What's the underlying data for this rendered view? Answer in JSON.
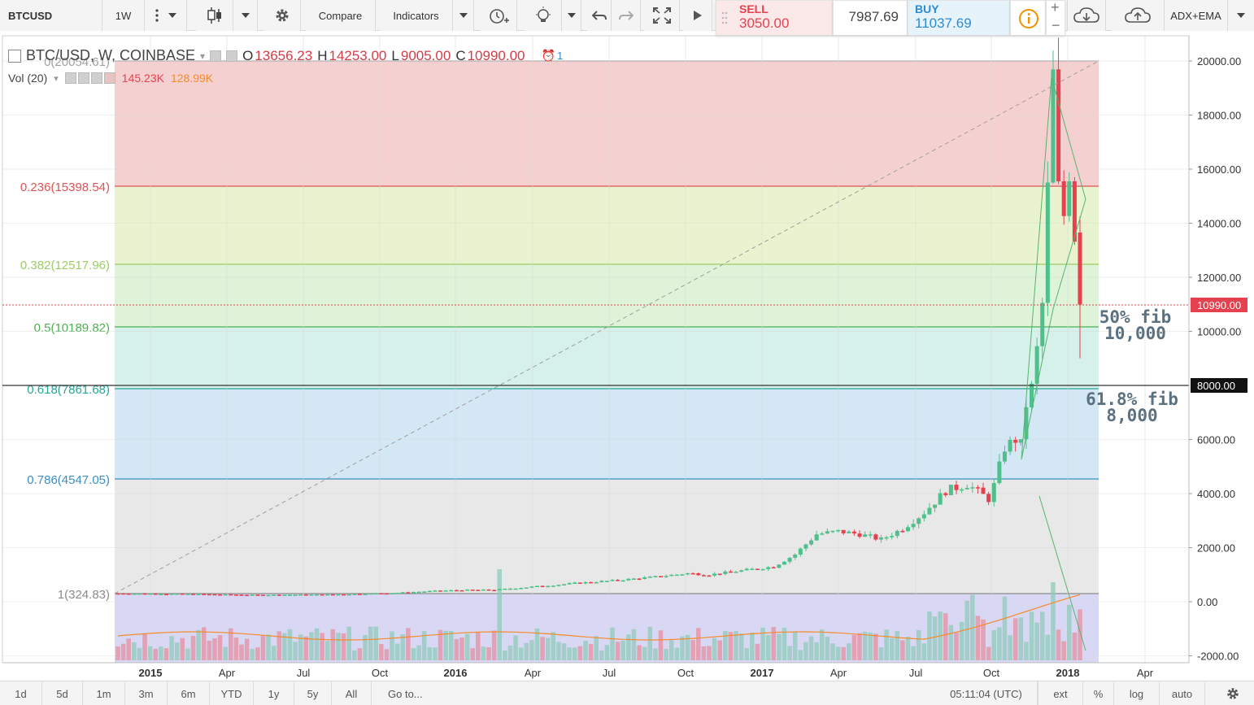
{
  "toolbar": {
    "symbol": "BTCUSD",
    "interval": "1W",
    "compare": "Compare",
    "indicators": "Indicators",
    "sell_label": "SELL",
    "sell_price": "3050.00",
    "spread": "7987.69",
    "buy_label": "BUY",
    "buy_price": "11037.69",
    "layout": "ADX+EMA",
    "zoom_in": "+",
    "zoom_out": "−"
  },
  "legend": {
    "symbol_line": "BTC/USD, W, COINBASE",
    "o_label": "O",
    "o_value": "13656.23",
    "h_label": "H",
    "h_value": "14253.00",
    "l_label": "L",
    "l_value": "9005.00",
    "c_label": "C",
    "c_value": "10990.00",
    "alert_count": "1",
    "vol_label": "Vol (20)",
    "vol_value": "145.23K",
    "vol_ma_value": "128.99K"
  },
  "price_axis": {
    "labels": [
      "20000.00",
      "18000.00",
      "16000.00",
      "14000.00",
      "12000.00",
      "10000.00",
      "6000.00",
      "4000.00",
      "2000.00",
      "0.00",
      "-2000.00"
    ],
    "last_price_tag": "10990.00",
    "level_tag": "8000.00"
  },
  "time_axis": {
    "labels": [
      "2015",
      "Apr",
      "Jul",
      "Oct",
      "2016",
      "Apr",
      "Jul",
      "Oct",
      "2017",
      "Apr",
      "Jul",
      "Oct",
      "2018",
      "Apr"
    ]
  },
  "fib_levels": [
    {
      "label": "0(20054.61)",
      "color": "#9e9e9e"
    },
    {
      "label": "0.236(15398.54)",
      "color": "#e05353"
    },
    {
      "label": "0.382(12517.96)",
      "color": "#9ccc65"
    },
    {
      "label": "0.5(10189.82)",
      "color": "#4caf50"
    },
    {
      "label": "0.618(7861.68)",
      "color": "#26a69a"
    },
    {
      "label": "0.786(4547.05)",
      "color": "#3a8ec4"
    },
    {
      "label": "1(324.83)",
      "color": "#8a8a8a"
    }
  ],
  "annotations": [
    {
      "line1": "50% fib",
      "line2": "10,000"
    },
    {
      "line1": "61.8% fib",
      "line2": "8,000"
    }
  ],
  "bottom": {
    "ranges": [
      "1d",
      "5d",
      "1m",
      "3m",
      "6m",
      "YTD",
      "1y",
      "5y",
      "All"
    ],
    "goto": "Go to...",
    "clock": "05:11:04 (UTC)",
    "ext": "ext",
    "pct": "%",
    "log": "log",
    "auto": "auto"
  },
  "colors": {
    "up": "#4fc08b",
    "down": "#e5414e",
    "fib_zone_0": "#f5d0d0",
    "fib_zone_1": "#e9f3cf",
    "fib_zone_2": "#dff3d9",
    "fib_zone_3": "#d5f1e9",
    "fib_zone_4": "#d3e7f4",
    "fib_zone_5": "#e8e8e8",
    "fib_zone_6": "#d9d8f4"
  }
}
